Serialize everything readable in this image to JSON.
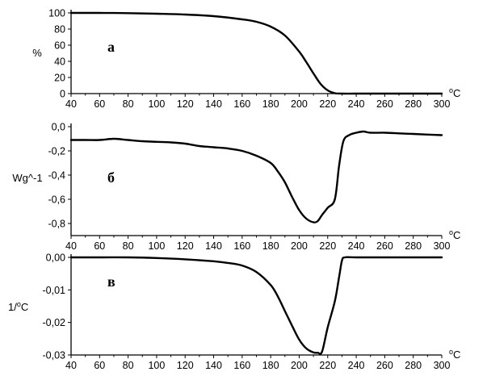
{
  "chart_data": [
    {
      "type": "line",
      "panel_label": "а",
      "ylabel": "%",
      "xunit": "oC",
      "xlim": [
        40,
        300
      ],
      "ylim": [
        0,
        100
      ],
      "xticks": [
        "40",
        "60",
        "80",
        "100",
        "120",
        "140",
        "160",
        "180",
        "200",
        "220",
        "240",
        "260",
        "280",
        "300"
      ],
      "yticks": [
        "100",
        "80",
        "60",
        "40",
        "20",
        "0"
      ],
      "series": [
        {
          "x": [
            40,
            60,
            80,
            100,
            120,
            140,
            160,
            170,
            180,
            190,
            200,
            205,
            210,
            215,
            220,
            225,
            230,
            240,
            260,
            280,
            300
          ],
          "y": [
            100,
            100,
            99.7,
            99,
            98,
            96,
            92,
            89,
            83,
            72,
            52,
            39,
            25,
            12,
            4,
            0.5,
            0,
            0,
            0,
            0,
            0
          ]
        }
      ],
      "colors": {
        "line": "#000000"
      }
    },
    {
      "type": "line",
      "panel_label": "б",
      "ylabel": "Wg^-1",
      "xunit": "oC",
      "xlim": [
        40,
        300
      ],
      "ylim": [
        -0.9,
        0.0
      ],
      "xticks": [
        "40",
        "60",
        "80",
        "100",
        "120",
        "140",
        "160",
        "180",
        "200",
        "220",
        "240",
        "260",
        "280",
        "300"
      ],
      "yticks": [
        "0,0",
        "-0,2",
        "-0,4",
        "-0,6",
        "-0,8"
      ],
      "series": [
        {
          "x": [
            40,
            50,
            60,
            70,
            80,
            90,
            100,
            110,
            120,
            130,
            140,
            150,
            160,
            170,
            180,
            185,
            190,
            195,
            200,
            205,
            210,
            213,
            216,
            220,
            225,
            228,
            231,
            235,
            240,
            245,
            250,
            260,
            270,
            280,
            290,
            300
          ],
          "y": [
            -0.11,
            -0.11,
            -0.11,
            -0.1,
            -0.11,
            -0.12,
            -0.125,
            -0.13,
            -0.14,
            -0.16,
            -0.17,
            -0.18,
            -0.2,
            -0.24,
            -0.3,
            -0.37,
            -0.46,
            -0.58,
            -0.69,
            -0.76,
            -0.79,
            -0.78,
            -0.73,
            -0.67,
            -0.6,
            -0.32,
            -0.12,
            -0.07,
            -0.05,
            -0.04,
            -0.05,
            -0.05,
            -0.055,
            -0.06,
            -0.065,
            -0.07
          ]
        }
      ],
      "colors": {
        "line": "#000000"
      }
    },
    {
      "type": "line",
      "panel_label": "в",
      "ylabel": "1/oC",
      "xunit": "oC",
      "xlim": [
        40,
        300
      ],
      "ylim": [
        -0.03,
        0.0
      ],
      "xticks": [
        "40",
        "60",
        "80",
        "100",
        "120",
        "140",
        "160",
        "180",
        "200",
        "220",
        "240",
        "260",
        "280",
        "300"
      ],
      "yticks": [
        "0,00",
        "-0,01",
        "-0,02",
        "-0,03"
      ],
      "series": [
        {
          "x": [
            40,
            60,
            80,
            100,
            120,
            140,
            150,
            160,
            170,
            180,
            185,
            190,
            195,
            200,
            205,
            210,
            213,
            216,
            220,
            225,
            228,
            230,
            232,
            240,
            260,
            280,
            300
          ],
          "y": [
            0,
            0,
            0,
            -0.0002,
            -0.0006,
            -0.0012,
            -0.0017,
            -0.0025,
            -0.0045,
            -0.0085,
            -0.012,
            -0.0165,
            -0.021,
            -0.0253,
            -0.028,
            -0.0292,
            -0.0293,
            -0.029,
            -0.0215,
            -0.0135,
            -0.006,
            -0.001,
            0,
            0,
            0,
            0,
            0
          ]
        }
      ],
      "colors": {
        "line": "#000000"
      }
    }
  ]
}
